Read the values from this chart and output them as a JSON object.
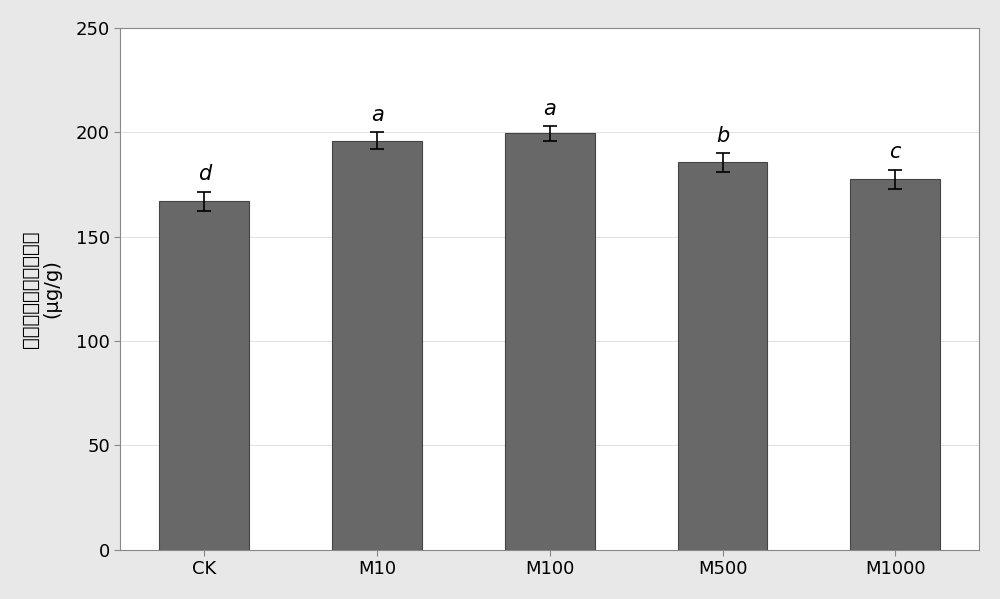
{
  "categories": [
    "CK",
    "M10",
    "M100",
    "M500",
    "M1000"
  ],
  "values": [
    167.0,
    196.0,
    199.5,
    185.5,
    177.5
  ],
  "errors": [
    4.5,
    4.0,
    3.5,
    4.5,
    4.5
  ],
  "sig_labels": [
    "d",
    "a",
    "a",
    "b",
    "c"
  ],
  "bar_color": "#686868",
  "bar_edgecolor": "#444444",
  "ylabel_line1": "紫甘蓝幼苗花青素含量",
  "ylabel_line2": "(μg/g)",
  "ylim": [
    0,
    250
  ],
  "yticks": [
    0,
    50,
    100,
    150,
    200,
    250
  ],
  "bar_width": 0.52,
  "background_color": "#e8e8e8",
  "plot_bg_color": "#ffffff",
  "grid_color": "#dddddd",
  "sig_label_fontsize": 15,
  "tick_fontsize": 13,
  "ylabel_fontsize": 14,
  "spine_color": "#888888"
}
